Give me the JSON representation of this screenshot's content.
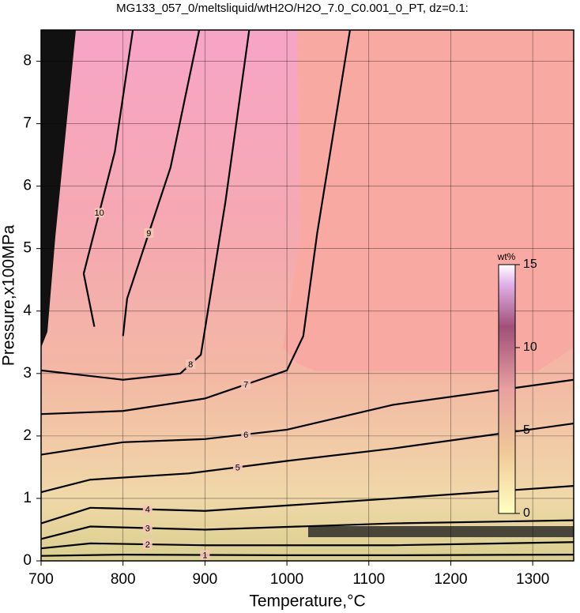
{
  "chart_data": {
    "type": "contour",
    "title": "MG133_057_0/meltsliquid/wtH2O/H2O_7.0_C0.001_0_PT, dz=0.1:",
    "x_label": "Temperature,°C",
    "y_label": "Pressure,x100MPa",
    "xlim": [
      700,
      1350
    ],
    "ylim": [
      0,
      8.5
    ],
    "xticks": [
      700,
      800,
      900,
      1000,
      1100,
      1200,
      1300
    ],
    "yticks": [
      0,
      1,
      2,
      3,
      4,
      5,
      6,
      7,
      8
    ],
    "grid": true,
    "contours": [
      {
        "level": 1,
        "x": [
          700,
          800,
          1000,
          1130,
          1350
        ],
        "y": [
          0.08,
          0.1,
          0.09,
          0.09,
          0.1
        ]
      },
      {
        "level": 2,
        "x": [
          700,
          760,
          900,
          1130,
          1350
        ],
        "y": [
          0.2,
          0.28,
          0.25,
          0.25,
          0.3
        ]
      },
      {
        "level": 3,
        "x": [
          700,
          760,
          900,
          1130,
          1350
        ],
        "y": [
          0.35,
          0.55,
          0.5,
          0.6,
          0.65
        ]
      },
      {
        "level": 4,
        "x": [
          700,
          760,
          900,
          1130,
          1350
        ],
        "y": [
          0.6,
          0.85,
          0.8,
          1.0,
          1.2
        ]
      },
      {
        "level": 5,
        "x": [
          700,
          760,
          880,
          1000,
          1130,
          1350
        ],
        "y": [
          1.1,
          1.3,
          1.4,
          1.6,
          1.8,
          2.2
        ]
      },
      {
        "level": 6,
        "x": [
          700,
          800,
          900,
          1000,
          1130,
          1350
        ],
        "y": [
          1.7,
          1.9,
          1.95,
          2.1,
          2.5,
          2.9
        ]
      },
      {
        "level": 7,
        "x": [
          700,
          800,
          900,
          1000,
          1020,
          1037,
          1077
        ],
        "y": [
          2.35,
          2.4,
          2.6,
          3.05,
          3.6,
          5.25,
          8.5
        ]
      },
      {
        "level": 8,
        "x": [
          700,
          800,
          870,
          895,
          925,
          954
        ],
        "y": [
          3.05,
          2.9,
          3.0,
          3.3,
          5.75,
          8.5
        ]
      },
      {
        "level": 9,
        "x": [
          800,
          805,
          858,
          893
        ],
        "y": [
          3.6,
          4.2,
          6.3,
          8.5
        ]
      },
      {
        "level": 10,
        "x": [
          765,
          752,
          790,
          812
        ],
        "y": [
          3.75,
          4.6,
          6.55,
          8.5
        ]
      }
    ],
    "colorbar": {
      "label": "wt%",
      "lim": [
        0,
        15
      ],
      "ticks": [
        0,
        5,
        10,
        15
      ]
    }
  }
}
